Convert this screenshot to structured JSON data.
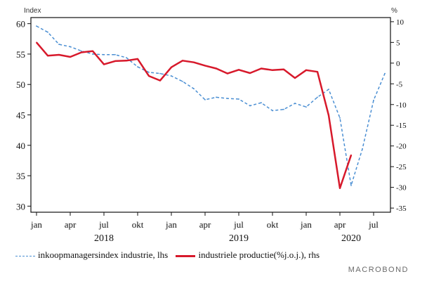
{
  "chart_data": {
    "type": "line",
    "left_axis_unit": "Index",
    "right_axis_unit": "%",
    "ylim_left": [
      29,
      61
    ],
    "ylim_right": [
      -36,
      11
    ],
    "left_ticks": [
      30,
      35,
      40,
      45,
      50,
      55,
      60
    ],
    "right_ticks": [
      10,
      5,
      0,
      -5,
      -10,
      -15,
      -20,
      -25,
      -30,
      -35
    ],
    "x_ticks": [
      {
        "label": "jan",
        "x": 0
      },
      {
        "label": "apr",
        "x": 3
      },
      {
        "label": "jul",
        "x": 6
      },
      {
        "label": "okt",
        "x": 9
      },
      {
        "label": "jan",
        "x": 12
      },
      {
        "label": "apr",
        "x": 15
      },
      {
        "label": "jul",
        "x": 18
      },
      {
        "label": "okt",
        "x": 21
      },
      {
        "label": "jan",
        "x": 24
      },
      {
        "label": "apr",
        "x": 27
      },
      {
        "label": "jul",
        "x": 30
      }
    ],
    "year_labels": [
      {
        "label": "2018",
        "x": 6
      },
      {
        "label": "2019",
        "x": 18
      },
      {
        "label": "2020",
        "x": 28
      }
    ],
    "series": [
      {
        "name": "inkoopmanagersindex industrie, lhs",
        "axis": "left",
        "color": "#4b8fd3",
        "style": "dashed",
        "x": [
          0,
          1,
          2,
          3,
          4,
          5,
          6,
          7,
          8,
          9,
          10,
          11,
          12,
          13,
          14,
          15,
          16,
          17,
          18,
          19,
          20,
          21,
          22,
          23,
          24,
          25,
          26,
          27,
          28,
          29,
          30,
          31
        ],
        "values": [
          59.6,
          58.6,
          56.6,
          56.2,
          55.5,
          55.0,
          54.9,
          54.9,
          54.4,
          52.9,
          52.0,
          51.8,
          51.4,
          50.5,
          49.3,
          47.5,
          47.9,
          47.7,
          47.6,
          46.5,
          47.0,
          45.7,
          45.9,
          46.9,
          46.3,
          47.9,
          49.2,
          44.5,
          33.4,
          39.4,
          47.4,
          51.8
        ]
      },
      {
        "name": "industriele productie(%j.o.j.), rhs",
        "axis": "right",
        "color": "#d7192b",
        "style": "solid",
        "x": [
          0,
          1,
          2,
          3,
          4,
          5,
          6,
          7,
          8,
          9,
          10,
          11,
          12,
          13,
          14,
          15,
          16,
          17,
          18,
          19,
          20,
          21,
          22,
          23,
          24,
          25,
          26,
          27,
          28,
          29
        ],
        "values": [
          5.0,
          1.8,
          2.0,
          1.5,
          2.6,
          2.9,
          -0.3,
          0.5,
          0.6,
          1.0,
          -3.1,
          -4.2,
          -1.0,
          0.6,
          0.2,
          -0.6,
          -1.3,
          -2.5,
          -1.6,
          -2.4,
          -1.3,
          -1.7,
          -1.5,
          -3.6,
          -1.7,
          -2.1,
          -12.6,
          -30.2,
          -22.2,
          null
        ]
      }
    ]
  },
  "legend": {
    "items": [
      "inkoopmanagersindex industrie, lhs",
      "industriele productie(%j.o.j.), rhs"
    ]
  },
  "watermark": "MACROBOND"
}
